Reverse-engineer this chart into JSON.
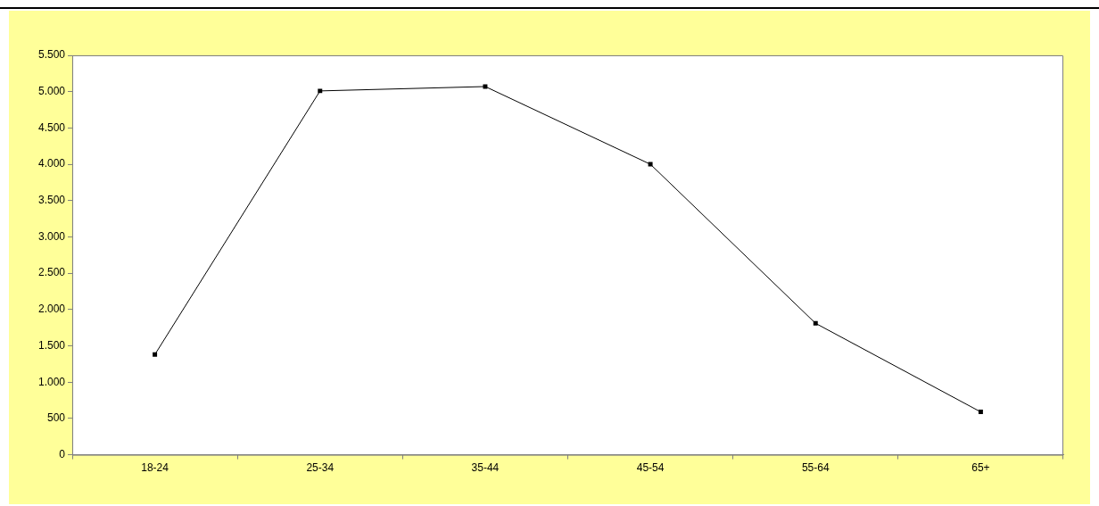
{
  "chart_data": {
    "type": "line",
    "categories": [
      "18-24",
      "25-34",
      "35-44",
      "45-54",
      "55-64",
      "65+"
    ],
    "series": [
      {
        "color": "#000000",
        "values": [
          1380,
          5010,
          5070,
          4000,
          1810,
          590
        ]
      }
    ],
    "ylim": [
      0,
      5500
    ],
    "yticks": [
      {
        "value": 0,
        "label": "0"
      },
      {
        "value": 500,
        "label": "500"
      },
      {
        "value": 1000,
        "label": "1.000"
      },
      {
        "value": 1500,
        "label": "1.500"
      },
      {
        "value": 2000,
        "label": "2.000"
      },
      {
        "value": 2500,
        "label": "2.500"
      },
      {
        "value": 3000,
        "label": "3.000"
      },
      {
        "value": 3500,
        "label": "3.500"
      },
      {
        "value": 4000,
        "label": "4.000"
      },
      {
        "value": 4500,
        "label": "4.500"
      },
      {
        "value": 5000,
        "label": "5.000"
      },
      {
        "value": 5500,
        "label": "5.500"
      }
    ],
    "grid": false,
    "legend": false,
    "marker": "square",
    "line_style": "solid"
  }
}
